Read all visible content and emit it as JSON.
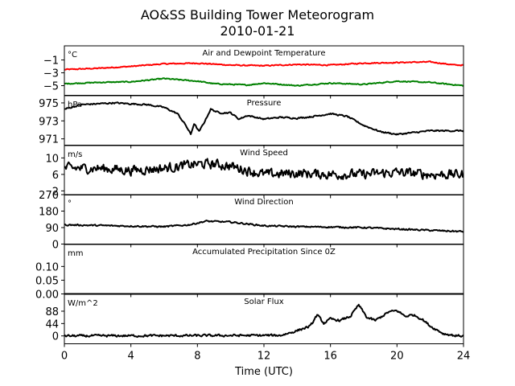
{
  "title_line1": "AO&SS Building Tower Meteorogram",
  "title_line2": "2010-01-21",
  "chart_data": {
    "type": "line",
    "xlabel": "Time (UTC)",
    "xlim": [
      0,
      24
    ],
    "x_ticks": [
      "0",
      "4",
      "8",
      "12",
      "16",
      "20",
      "24"
    ],
    "panels": [
      {
        "name": "Air and Dewpoint Temperature",
        "unit": "°C",
        "ylim": [
          -6.5,
          1.2
        ],
        "y_ticks": [
          -5,
          -3,
          -1
        ],
        "y_tick_labels": [
          "−5",
          "−3",
          "−1"
        ],
        "series": [
          {
            "color": "#ff0000",
            "points": [
              [
                0,
                -2.5
              ],
              [
                2,
                -2.3
              ],
              [
                4,
                -2.0
              ],
              [
                6,
                -1.6
              ],
              [
                8,
                -1.5
              ],
              [
                10,
                -1.8
              ],
              [
                12,
                -1.9
              ],
              [
                14,
                -1.7
              ],
              [
                16,
                -1.8
              ],
              [
                18,
                -1.5
              ],
              [
                20,
                -1.4
              ],
              [
                22,
                -1.3
              ],
              [
                23.5,
                -1.8
              ],
              [
                24,
                -1.8
              ]
            ],
            "noise": 0.12
          },
          {
            "color": "#008000",
            "points": [
              [
                0,
                -4.7
              ],
              [
                2,
                -4.5
              ],
              [
                4,
                -4.4
              ],
              [
                6,
                -3.9
              ],
              [
                8,
                -4.3
              ],
              [
                9,
                -4.7
              ],
              [
                10,
                -4.8
              ],
              [
                11,
                -4.9
              ],
              [
                12,
                -4.6
              ],
              [
                14,
                -5.0
              ],
              [
                16,
                -4.6
              ],
              [
                18,
                -4.8
              ],
              [
                20,
                -4.3
              ],
              [
                22,
                -4.5
              ],
              [
                24,
                -5.0
              ]
            ],
            "noise": 0.12
          }
        ]
      },
      {
        "name": "Pressure",
        "unit": "hPa",
        "ylim": [
          970.3,
          975.8
        ],
        "y_ticks": [
          971,
          973,
          975
        ],
        "y_tick_labels": [
          "971",
          "973",
          "975"
        ],
        "series": [
          {
            "color": "#000000",
            "points": [
              [
                0,
                974.3
              ],
              [
                1,
                974.8
              ],
              [
                2,
                974.9
              ],
              [
                3,
                975.0
              ],
              [
                4,
                974.9
              ],
              [
                5,
                974.8
              ],
              [
                6,
                974.5
              ],
              [
                6.8,
                973.8
              ],
              [
                7.3,
                972.5
              ],
              [
                7.6,
                971.5
              ],
              [
                7.8,
                972.7
              ],
              [
                8.1,
                971.8
              ],
              [
                8.4,
                972.8
              ],
              [
                8.8,
                974.3
              ],
              [
                9.3,
                973.9
              ],
              [
                10,
                973.9
              ],
              [
                10.5,
                973.2
              ],
              [
                11,
                973.6
              ],
              [
                12,
                973.2
              ],
              [
                13,
                973.4
              ],
              [
                14,
                973.3
              ],
              [
                15,
                973.5
              ],
              [
                16,
                973.8
              ],
              [
                17,
                973.5
              ],
              [
                18,
                972.5
              ],
              [
                19,
                971.8
              ],
              [
                20,
                971.5
              ],
              [
                21,
                971.7
              ],
              [
                22,
                971.9
              ],
              [
                24,
                971.9
              ]
            ],
            "noise": 0.12
          }
        ]
      },
      {
        "name": "Wind Speed",
        "unit": "m/s",
        "ylim": [
          1,
          13
        ],
        "y_ticks": [
          2,
          6,
          10
        ],
        "y_tick_labels": [
          "2",
          "6",
          "10"
        ],
        "series": [
          {
            "color": "#000000",
            "points": [
              [
                0,
                7.5
              ],
              [
                2,
                7.5
              ],
              [
                4,
                7.0
              ],
              [
                6,
                7.5
              ],
              [
                8,
                8.5
              ],
              [
                9,
                8.5
              ],
              [
                10,
                8.0
              ],
              [
                11,
                7.0
              ],
              [
                12,
                6.0
              ],
              [
                14,
                6.3
              ],
              [
                16,
                6.0
              ],
              [
                18,
                6.0
              ],
              [
                20,
                6.5
              ],
              [
                22,
                6.0
              ],
              [
                24,
                6.0
              ]
            ],
            "noise": 1.7
          }
        ]
      },
      {
        "name": "Wind Direction",
        "unit": "°",
        "ylim": [
          0,
          270
        ],
        "y_ticks": [
          0,
          90,
          180,
          270
        ],
        "y_tick_labels": [
          "0",
          "90",
          "180",
          "270"
        ],
        "series": [
          {
            "color": "#000000",
            "points": [
              [
                0,
                105
              ],
              [
                3,
                100
              ],
              [
                6,
                95
              ],
              [
                7.5,
                105
              ],
              [
                8.5,
                125
              ],
              [
                10,
                120
              ],
              [
                12,
                100
              ],
              [
                14,
                95
              ],
              [
                16,
                93
              ],
              [
                18,
                90
              ],
              [
                20,
                82
              ],
              [
                22,
                75
              ],
              [
                24,
                68
              ]
            ],
            "noise": 6
          }
        ]
      },
      {
        "name": "Accumulated Precipitation Since 0Z",
        "unit": "mm",
        "ylim": [
          0,
          0.18
        ],
        "y_ticks": [
          0.0,
          0.05,
          0.1
        ],
        "y_tick_labels": [
          "0.00",
          "0.05",
          "0.10"
        ],
        "series": [
          {
            "color": "#000000",
            "points": [
              [
                0,
                0
              ],
              [
                24,
                0
              ]
            ],
            "noise": 0
          }
        ]
      },
      {
        "name": "Solar Flux",
        "unit": "W/m^2",
        "ylim": [
          -28,
          148
        ],
        "y_ticks": [
          0,
          44,
          88
        ],
        "y_tick_labels": [
          "0",
          "44",
          "88"
        ],
        "series": [
          {
            "color": "#000000",
            "points": [
              [
                0,
                0
              ],
              [
                8,
                1
              ],
              [
                13,
                2
              ],
              [
                13.8,
                15
              ],
              [
                14.3,
                25
              ],
              [
                14.8,
                35
              ],
              [
                15.2,
                75
              ],
              [
                15.6,
                45
              ],
              [
                16,
                60
              ],
              [
                16.6,
                55
              ],
              [
                17.2,
                70
              ],
              [
                17.7,
                110
              ],
              [
                18.2,
                65
              ],
              [
                18.7,
                55
              ],
              [
                19.5,
                85
              ],
              [
                20,
                90
              ],
              [
                20.5,
                70
              ],
              [
                21,
                75
              ],
              [
                21.5,
                60
              ],
              [
                22,
                35
              ],
              [
                22.8,
                8
              ],
              [
                23.5,
                1
              ],
              [
                24,
                0
              ]
            ],
            "noise": 6
          }
        ]
      }
    ]
  }
}
